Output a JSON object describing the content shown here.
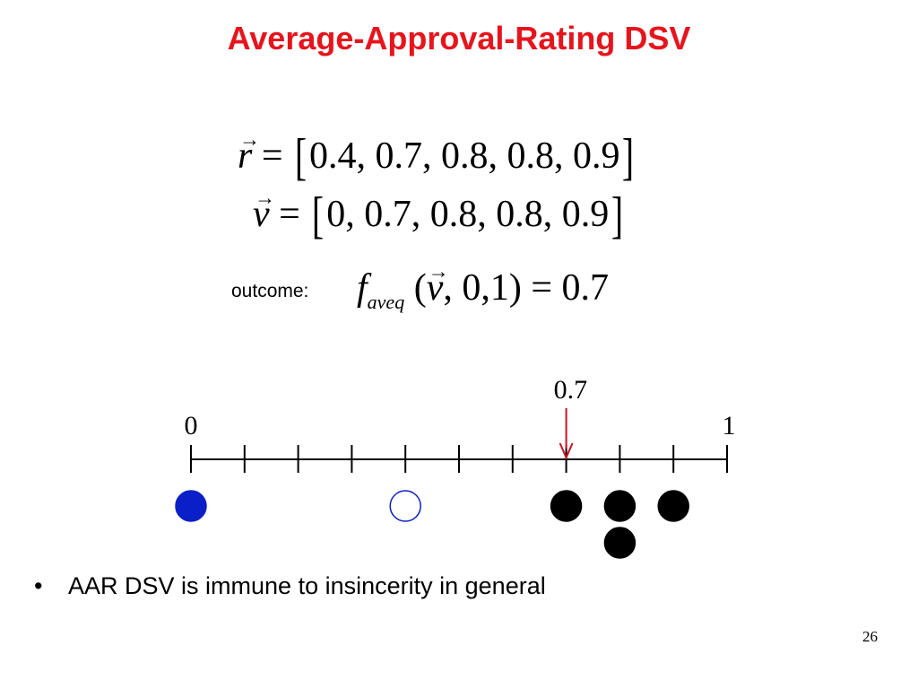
{
  "slide": {
    "title": "Average-Approval-Rating DSV",
    "page_number": "26"
  },
  "equations": {
    "r": {
      "var": "r",
      "equals": "=",
      "open": "[",
      "values": "0.4, 0.7, 0.8, 0.8, 0.9",
      "close": "]"
    },
    "v": {
      "var": "v",
      "equals": "=",
      "open": "[",
      "values": "0, 0.7, 0.8, 0.8, 0.9",
      "close": "]"
    },
    "outcome": {
      "label": "outcome:",
      "func": "f",
      "subscript": "aveq",
      "open_paren": "(",
      "arg_var": "v",
      "args_rest": ", 0,1)",
      "equals": "=",
      "result": "0.7"
    }
  },
  "scale": {
    "min_label": "0",
    "max_label": "1",
    "marker_label": "0.7",
    "min": 0,
    "max": 1,
    "tick_step": 0.1,
    "marker_value": 0.7,
    "marker_color": "#d01020",
    "votes": [
      {
        "value": 0.0,
        "style": "filled-blue",
        "stack": 0
      },
      {
        "value": 0.4,
        "style": "hollow-blue",
        "stack": 0
      },
      {
        "value": 0.7,
        "style": "filled-black",
        "stack": 0
      },
      {
        "value": 0.8,
        "style": "filled-black",
        "stack": 0
      },
      {
        "value": 0.8,
        "style": "filled-black",
        "stack": 1
      },
      {
        "value": 0.9,
        "style": "filled-black",
        "stack": 0
      }
    ],
    "colors": {
      "blue": "#0a1fc8",
      "black": "#000000"
    }
  },
  "bullets": [
    {
      "symbol": "•",
      "text": "AAR DSV is immune to insincerity in general"
    }
  ]
}
